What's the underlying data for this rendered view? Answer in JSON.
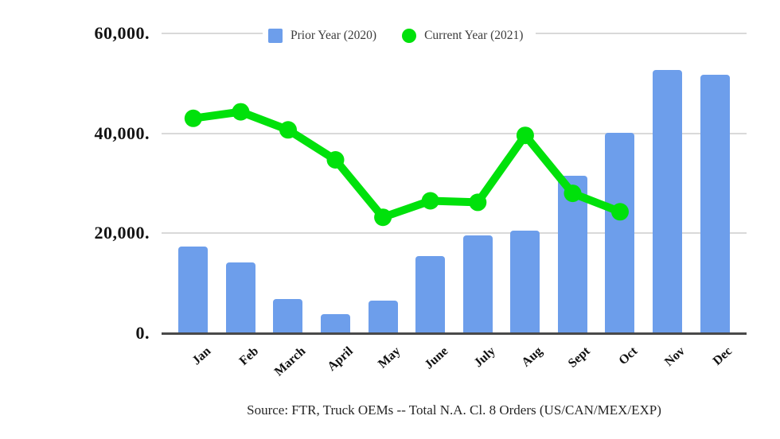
{
  "legend": {
    "prior_label": "Prior Year (2020)",
    "current_label": "Current Year (2021)"
  },
  "source_note": "Source: FTR, Truck OEMs -- Total N.A. Cl. 8 Orders (US/CAN/MEX/EXP)",
  "colors": {
    "bar_blue": "#6d9eeb",
    "line_green": "#00e10b",
    "gridline_gray": "#d9d9d9",
    "axis_dark": "#494949"
  },
  "chart_data": {
    "type": "bar",
    "subtype": "combo-bar-line",
    "title": "",
    "xlabel": "",
    "ylabel": "",
    "ylim": [
      0,
      60000
    ],
    "grid": "horizontal",
    "legend_position": "top",
    "categories": [
      "Jan",
      "Feb",
      "March",
      "April",
      "May",
      "June",
      "July",
      "Aug",
      "Sept",
      "Oct",
      "Nov",
      "Dec"
    ],
    "y_ticks": [
      {
        "label": "0.",
        "value": 0
      },
      {
        "label": "20,000.",
        "value": 20000
      },
      {
        "label": "40,000.",
        "value": 40000
      },
      {
        "label": "60,000.",
        "value": 60000
      }
    ],
    "series": [
      {
        "name": "Prior Year (2020)",
        "type": "bar",
        "color": "#6d9eeb",
        "values": [
          17400,
          14100,
          6900,
          3900,
          6500,
          15400,
          19600,
          20500,
          31500,
          40100,
          52700,
          51800
        ]
      },
      {
        "name": "Current Year (2021)",
        "type": "line",
        "color": "#00e10b",
        "values": [
          43000,
          44300,
          40700,
          34700,
          23200,
          26500,
          26200,
          39600,
          28000,
          24300,
          null,
          null
        ]
      }
    ]
  }
}
